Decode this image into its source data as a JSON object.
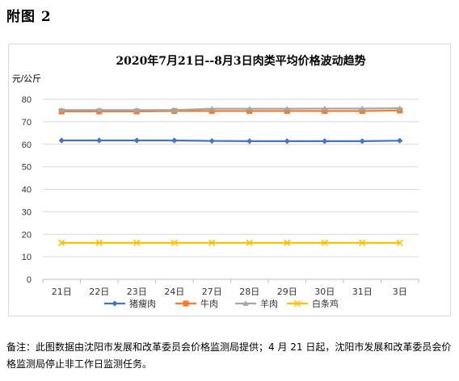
{
  "heading": "附图 2",
  "note": "备注：此图数据由沈阳市发展和改革委员会价格监测局提供；4 月 21 日起，沈阳市发展和改革委员会价格监测局停止非工作日监测任务。",
  "chart_data": {
    "type": "line",
    "title": "2020年7月21日--8月3日肉类平均价格波动趋势",
    "ylabel": "元/公斤",
    "xlabel": "",
    "ylim": [
      0,
      80
    ],
    "yticks": [
      0,
      10,
      20,
      30,
      40,
      50,
      60,
      70,
      80
    ],
    "grid": true,
    "legend_position": "bottom",
    "categories": [
      "21日",
      "22日",
      "23日",
      "24日",
      "27日",
      "28日",
      "29日",
      "30日",
      "31日",
      "3日"
    ],
    "series": [
      {
        "name": "猪瘦肉",
        "color": "#4472c4",
        "marker": "diamond",
        "values": [
          61.7,
          61.7,
          61.7,
          61.7,
          61.5,
          61.4,
          61.4,
          61.4,
          61.4,
          61.6
        ]
      },
      {
        "name": "牛肉",
        "color": "#ed7d31",
        "marker": "square",
        "values": [
          74.6,
          74.6,
          74.6,
          74.8,
          74.8,
          74.8,
          74.8,
          74.8,
          74.8,
          75.0
        ]
      },
      {
        "name": "羊肉",
        "color": "#a5a5a5",
        "marker": "triangle",
        "values": [
          75.2,
          75.2,
          75.2,
          75.2,
          75.8,
          75.8,
          75.8,
          75.9,
          75.9,
          76.0
        ]
      },
      {
        "name": "白条鸡",
        "color": "#ffc000",
        "marker": "x",
        "values": [
          16.2,
          16.2,
          16.2,
          16.2,
          16.2,
          16.2,
          16.2,
          16.2,
          16.2,
          16.2
        ]
      }
    ]
  }
}
